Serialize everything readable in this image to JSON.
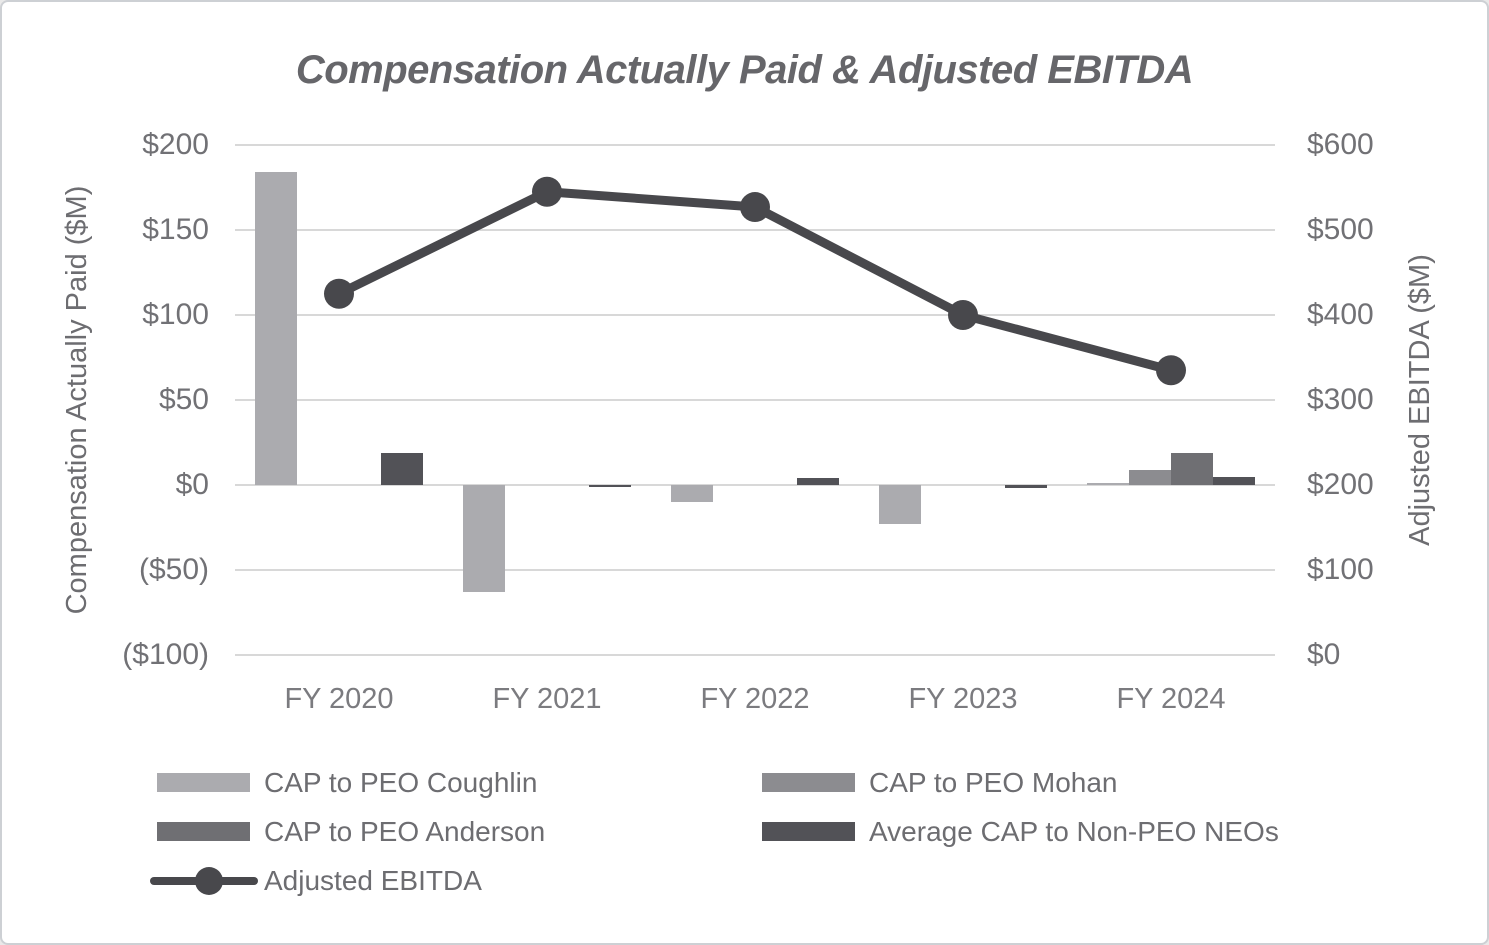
{
  "chart_data": {
    "type": "combo",
    "subtype": "clustered-bar+line-dual-axis",
    "title": "Compensation Actually Paid & Adjusted EBITDA",
    "categories": [
      "FY 2020",
      "FY 2021",
      "FY 2022",
      "FY 2023",
      "FY 2024"
    ],
    "bar_series": [
      {
        "name": "CAP to PEO Coughlin",
        "axis": "left",
        "color": "#ababaf",
        "values": [
          184,
          -63,
          -10,
          -23,
          1
        ]
      },
      {
        "name": "CAP to PEO Mohan",
        "axis": "left",
        "color": "#8c8c90",
        "values": [
          0,
          0,
          0,
          0,
          9
        ]
      },
      {
        "name": "CAP to PEO Anderson",
        "axis": "left",
        "color": "#6f6f73",
        "values": [
          0,
          0,
          0,
          0,
          19
        ]
      },
      {
        "name": "Average CAP to Non-PEO NEOs",
        "axis": "left",
        "color": "#525257",
        "values": [
          19,
          -1,
          4,
          -2,
          5
        ]
      }
    ],
    "line_series": [
      {
        "name": "Adjusted EBITDA",
        "axis": "right",
        "color": "#48484c",
        "values": [
          425,
          545,
          527,
          400,
          335
        ]
      }
    ],
    "left_axis": {
      "title": "Compensation Actually Paid ($M)",
      "ticks": [
        "$200",
        "$150",
        "$100",
        "$50",
        "$0",
        "($50)",
        "($100)"
      ],
      "min": -100,
      "max": 200
    },
    "right_axis": {
      "title": "Adjusted EBITDA ($M)",
      "ticks": [
        "$600",
        "$500",
        "$400",
        "$300",
        "$200",
        "$100",
        "$0"
      ],
      "min": 0,
      "max": 600
    },
    "grid": "horizontal",
    "legend_position": "bottom",
    "legend_columns": [
      [
        "CAP to PEO Coughlin",
        "CAP to PEO Anderson",
        "Adjusted EBITDA"
      ],
      [
        "CAP to PEO Mohan",
        "Average CAP to Non-PEO NEOs"
      ]
    ]
  },
  "colors": {
    "background": "#ffffff",
    "border": "#cdd0d4",
    "grid": "#d8d8d8",
    "text": "#6d6d71"
  }
}
